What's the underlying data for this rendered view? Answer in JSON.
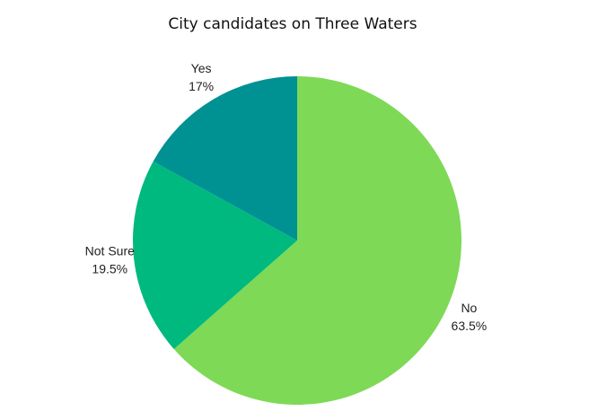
{
  "chart_data": {
    "type": "pie",
    "title": "City candidates on Three Waters",
    "categories": [
      "No",
      "Not Sure",
      "Yes"
    ],
    "values": [
      63.5,
      19.5,
      17
    ],
    "value_labels": [
      "63.5%",
      "19.5%",
      "17%"
    ],
    "colors": [
      "#7ed957",
      "#00b97e",
      "#009193"
    ]
  }
}
